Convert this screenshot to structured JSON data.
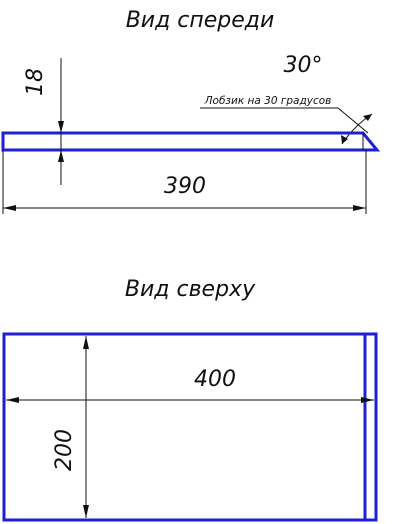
{
  "drawing": {
    "front_view_title": "Вид спереди",
    "top_view_title": "Вид сверху",
    "bevel_angle": "30°",
    "bevel_note": "Лобзик на 30 градусов",
    "front_thickness": "18",
    "front_length": "390",
    "top_length": "400",
    "top_width": "200",
    "colors": {
      "part_outline": "#1f1fd6",
      "dimension_lines": "#111111"
    }
  }
}
